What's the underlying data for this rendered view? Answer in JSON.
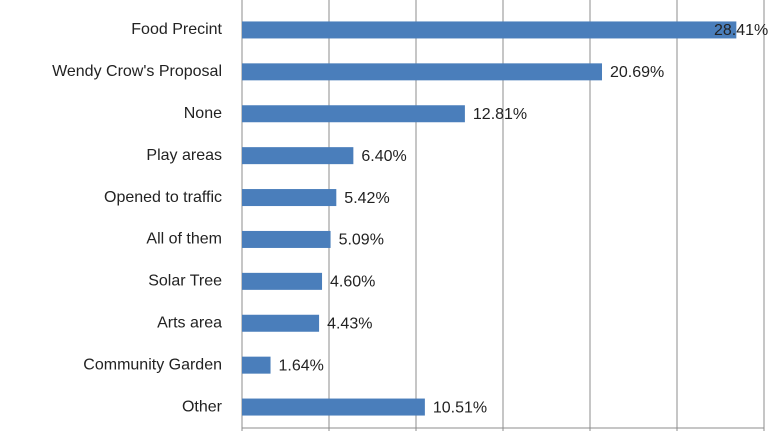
{
  "chart_data": {
    "type": "barh",
    "categories": [
      "Food Precint",
      "Wendy Crow's Proposal",
      "None",
      "Play areas",
      "Opened to traffic",
      "All of them",
      "Solar Tree",
      "Arts area",
      "Community Garden",
      "Other"
    ],
    "values": [
      28.41,
      20.69,
      12.81,
      6.4,
      5.42,
      5.09,
      4.6,
      4.43,
      1.64,
      10.51
    ],
    "value_labels": [
      "28.41%",
      "20.69%",
      "12.81%",
      "6.40%",
      "5.42%",
      "5.09%",
      "4.60%",
      "4.43%",
      "1.64%",
      "10.51%"
    ],
    "color": "#4a7ebb",
    "xlim": [
      0,
      30
    ],
    "xticks": [
      0,
      5,
      10,
      15,
      20,
      25,
      30
    ],
    "grid": true
  }
}
